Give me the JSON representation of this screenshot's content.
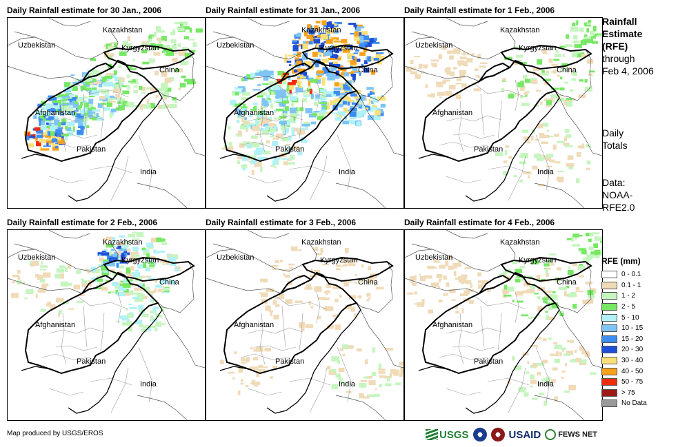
{
  "panels": [
    {
      "title": "Daily Rainfall estimate for 30 Jan., 2006",
      "intensity": "heavy-west"
    },
    {
      "title": "Daily Rainfall estimate for 31 Jan., 2006",
      "intensity": "heavy-northeast"
    },
    {
      "title": "Daily Rainfall estimate for 1 Feb., 2006",
      "intensity": "light"
    },
    {
      "title": "Daily Rainfall estimate for 2 Feb., 2006",
      "intensity": "moderate-north"
    },
    {
      "title": "Daily Rainfall estimate for 3 Feb., 2006",
      "intensity": "very-light"
    },
    {
      "title": "Daily Rainfall estimate for 4 Feb., 2006",
      "intensity": "light"
    }
  ],
  "map_labels": {
    "kazakhstan": "Kazakhstan",
    "uzbekistan": "Uzbekistan",
    "kyrgyzstan": "Kyrgyzstan",
    "china": "China",
    "afghanistan": "Afghanistan",
    "pakistan": "Pakistan",
    "india": "India"
  },
  "side": {
    "title_bold": [
      "Rainfall",
      "Estimate",
      "(RFE)"
    ],
    "title_rest": [
      "through",
      "Feb 4, 2006"
    ],
    "daily": [
      "Daily",
      "Totals"
    ],
    "data": [
      "Data:",
      "NOAA-",
      "RFE2.0"
    ]
  },
  "legend": {
    "title": "RFE (mm)",
    "items": [
      {
        "label": "0 - 0.1",
        "color": "#ffffff"
      },
      {
        "label": "0.1 - 1",
        "color": "#f0dbb8"
      },
      {
        "label": "1 - 2",
        "color": "#c6f5bf"
      },
      {
        "label": "2 - 5",
        "color": "#76e863"
      },
      {
        "label": "5 - 10",
        "color": "#b0f2f7"
      },
      {
        "label": "10 - 15",
        "color": "#7ec4f7"
      },
      {
        "label": "15 - 20",
        "color": "#3d8cf0"
      },
      {
        "label": "20 - 30",
        "color": "#1f4fd6"
      },
      {
        "label": "30 - 40",
        "color": "#fbe07a"
      },
      {
        "label": "40 - 50",
        "color": "#f7a21b"
      },
      {
        "label": "50 - 75",
        "color": "#ee2d0c"
      },
      {
        "label": "> 75",
        "color": "#9e1a16"
      },
      {
        "label": "No Data",
        "color": "#999999"
      }
    ]
  },
  "credit": "Map produced by USGS/EROS",
  "logos": {
    "usgs": "USGS",
    "usaid": "USAID",
    "fews": "FEWS NET"
  }
}
